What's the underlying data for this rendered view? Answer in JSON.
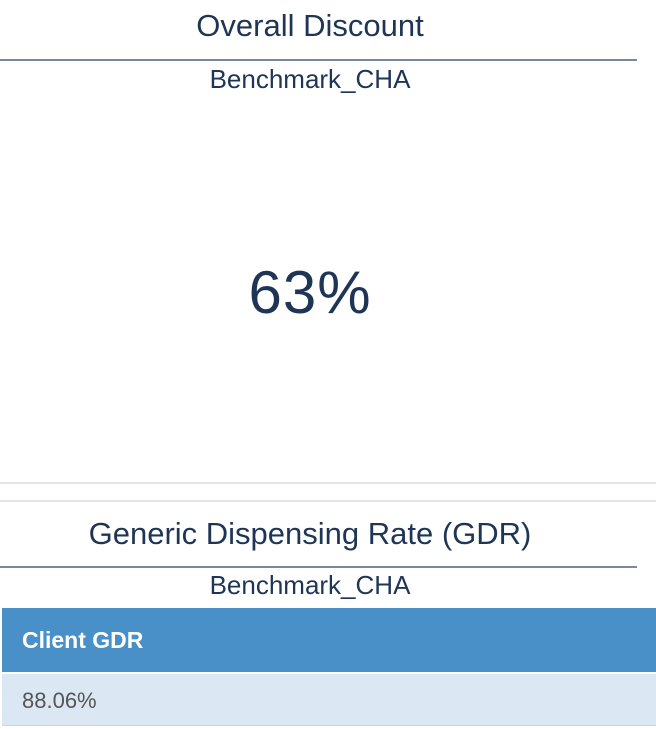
{
  "overall_discount": {
    "title": "Overall Discount",
    "benchmark_label": "Benchmark_CHA",
    "value": "63%"
  },
  "gdr": {
    "title": "Generic Dispensing Rate (GDR)",
    "benchmark_label": "Benchmark_CHA",
    "table": {
      "columns": [
        "Client GDR"
      ],
      "rows": [
        [
          "88.06%"
        ]
      ]
    }
  }
}
